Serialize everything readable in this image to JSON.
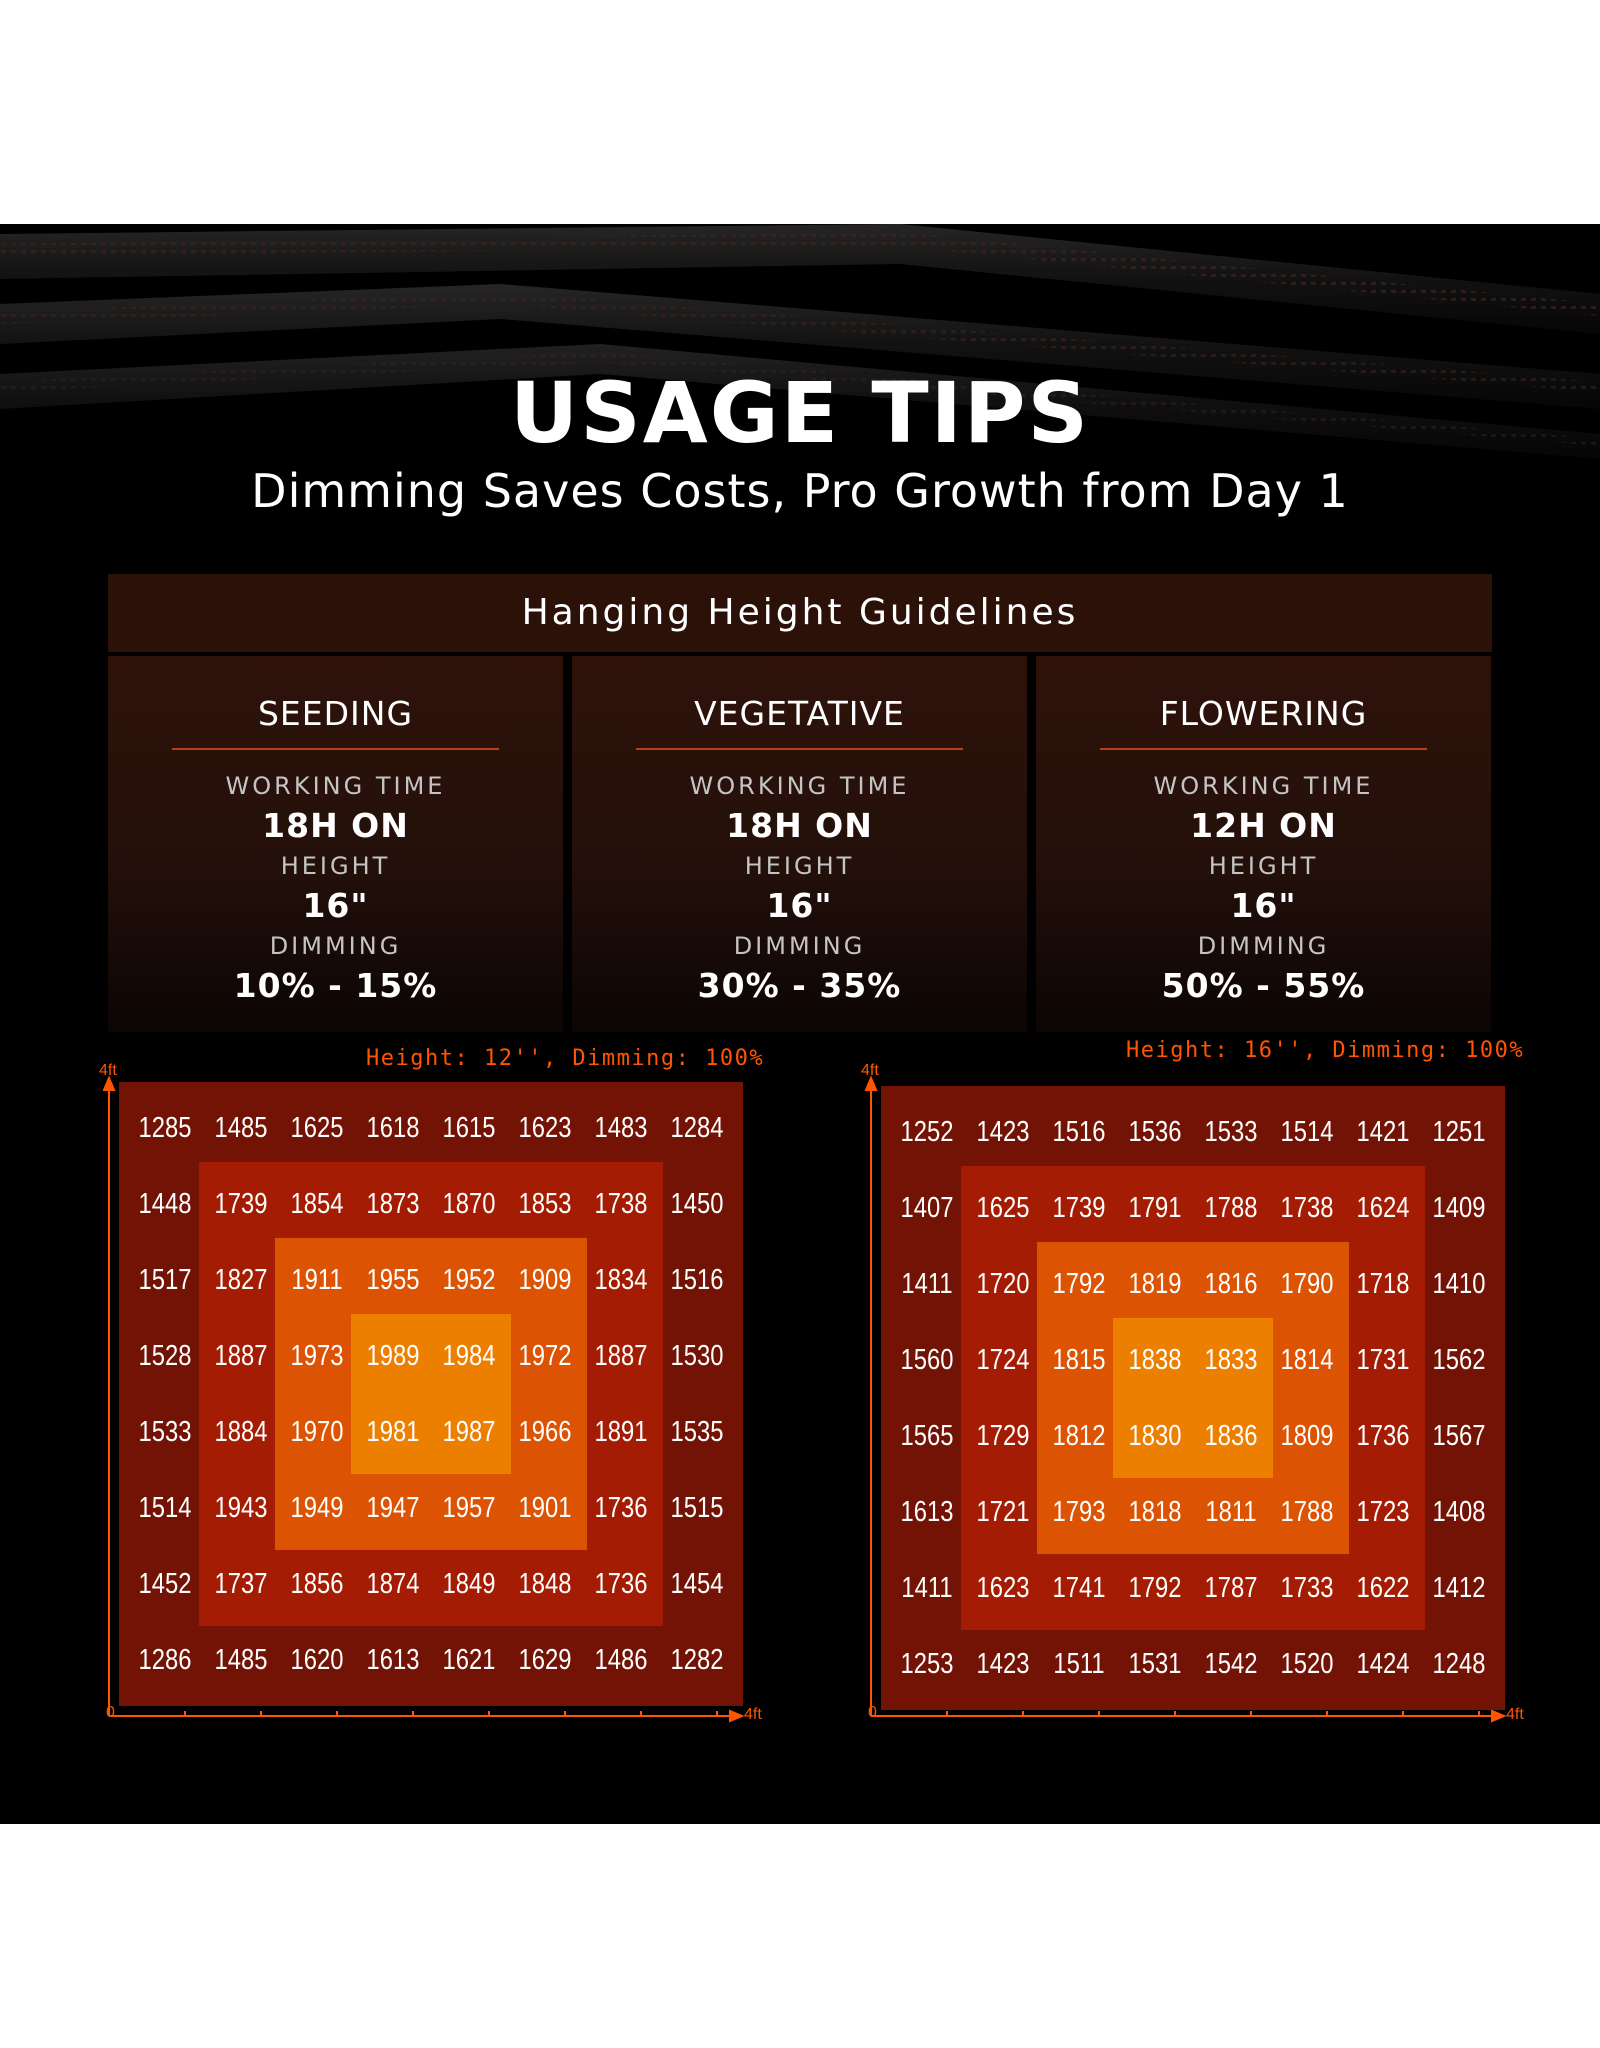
{
  "header": {
    "title": "USAGE TIPS",
    "subtitle": "Dimming Saves Costs, Pro Growth from Day 1"
  },
  "guidelines": {
    "title": "Hanging Height Guidelines",
    "labels": {
      "working_time": "WORKING TIME",
      "height": "HEIGHT",
      "dimming": "DIMMING"
    },
    "stages": [
      {
        "name": "SEEDING",
        "working_time": "18H ON",
        "height": "16\"",
        "dimming": "10% - 15%"
      },
      {
        "name": "VEGETATIVE",
        "working_time": "18H ON",
        "height": "16\"",
        "dimming": "30% - 35%"
      },
      {
        "name": "FLOWERING",
        "working_time": "12H ON",
        "height": "16\"",
        "dimming": "50% - 55%"
      }
    ]
  },
  "colors": {
    "ring1": "#721305",
    "ring2": "#a41c03",
    "ring3": "#db5303",
    "ring4": "#ec7f00",
    "accent": "#ff5500",
    "header_bg": "#2c1109"
  },
  "chart_data": [
    {
      "type": "heatmap",
      "title": "Height: 12'', Dimming: 100%",
      "x_axis": {
        "min_label": "0",
        "max_label": "4ft"
      },
      "y_axis": {
        "max_label": "4ft"
      },
      "rows": [
        [
          1285,
          1485,
          1625,
          1618,
          1615,
          1623,
          1483,
          1284
        ],
        [
          1448,
          1739,
          1854,
          1873,
          1870,
          1853,
          1738,
          1450
        ],
        [
          1517,
          1827,
          1911,
          1955,
          1952,
          1909,
          1834,
          1516
        ],
        [
          1528,
          1887,
          1973,
          1989,
          1984,
          1972,
          1887,
          1530
        ],
        [
          1533,
          1884,
          1970,
          1981,
          1987,
          1966,
          1891,
          1535
        ],
        [
          1514,
          1943,
          1949,
          1947,
          1957,
          1901,
          1736,
          1515
        ],
        [
          1452,
          1737,
          1856,
          1874,
          1849,
          1848,
          1736,
          1454
        ],
        [
          1286,
          1485,
          1620,
          1613,
          1621,
          1629,
          1486,
          1282
        ]
      ]
    },
    {
      "type": "heatmap",
      "title": "Height: 16'', Dimming: 100%",
      "x_axis": {
        "min_label": "0",
        "max_label": "4ft"
      },
      "y_axis": {
        "max_label": "4ft"
      },
      "rows": [
        [
          1252,
          1423,
          1516,
          1536,
          1533,
          1514,
          1421,
          1251
        ],
        [
          1407,
          1625,
          1739,
          1791,
          1788,
          1738,
          1624,
          1409
        ],
        [
          1411,
          1720,
          1792,
          1819,
          1816,
          1790,
          1718,
          1410
        ],
        [
          1560,
          1724,
          1815,
          1838,
          1833,
          1814,
          1731,
          1562
        ],
        [
          1565,
          1729,
          1812,
          1830,
          1836,
          1809,
          1736,
          1567
        ],
        [
          1613,
          1721,
          1793,
          1818,
          1811,
          1788,
          1723,
          1408
        ],
        [
          1411,
          1623,
          1741,
          1792,
          1787,
          1733,
          1622,
          1412
        ],
        [
          1253,
          1423,
          1511,
          1531,
          1542,
          1520,
          1424,
          1248
        ]
      ]
    }
  ]
}
